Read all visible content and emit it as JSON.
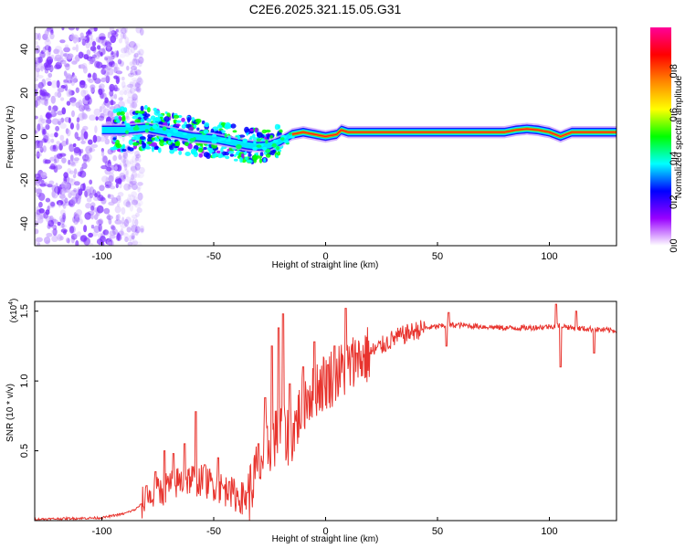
{
  "title": "C2E6.2025.321.15.05.G31",
  "chart_data": [
    {
      "type": "heatmap",
      "xlabel": "Height of straight line (km)",
      "ylabel": "Frequency (Hz)",
      "xlim": [
        -130,
        130
      ],
      "ylim": [
        -50,
        50
      ],
      "x_ticks": [
        -100,
        -50,
        0,
        50,
        100
      ],
      "x_tick_labels": [
        "-100",
        "-50",
        "0",
        "50",
        "100"
      ],
      "y_ticks": [
        -40,
        -20,
        0,
        20,
        40
      ],
      "y_tick_labels": [
        "-40",
        "-20",
        "0",
        "20",
        "40"
      ],
      "colorbar": {
        "label": "Normalized spectral amplitude",
        "range": [
          0,
          1
        ],
        "ticks": [
          0,
          0.2,
          0.4,
          0.6,
          0.8
        ],
        "tick_labels": [
          "0.0",
          "0.2",
          "0.4",
          "0.6",
          "0.8"
        ],
        "colors": [
          "#ffffff",
          "#9900ff",
          "#0000ff",
          "#00ffff",
          "#00ff00",
          "#ffff00",
          "#ff8800",
          "#ff0000",
          "#ff0099"
        ]
      },
      "ridge": {
        "x": [
          -100,
          -90,
          -80,
          -70,
          -60,
          -50,
          -45,
          -40,
          -35,
          -30,
          -25,
          -20,
          -15,
          -10,
          -5,
          0,
          5,
          7,
          10,
          20,
          40,
          60,
          80,
          85,
          90,
          95,
          100,
          105,
          110,
          120,
          130
        ],
        "y": [
          3,
          3,
          4,
          2,
          0,
          -1,
          -2,
          -3,
          -4,
          -4.5,
          -4,
          -2,
          1,
          2,
          1,
          0,
          1,
          3,
          2,
          2,
          2,
          2,
          2,
          3,
          3.5,
          3,
          2,
          0,
          2,
          2,
          2
        ]
      },
      "grid": false
    },
    {
      "type": "line",
      "xlabel": "Height of straight line (km)",
      "ylabel": "SNR (10 * v/v)",
      "scale_label_base": "(x10",
      "scale_label_exp": "4",
      "scale_label_close": ")",
      "xlim": [
        -130,
        130
      ],
      "ylim": [
        0,
        1.57
      ],
      "x_ticks": [
        -100,
        -50,
        0,
        50,
        100
      ],
      "x_tick_labels": [
        "-100",
        "-50",
        "0",
        "50",
        "100"
      ],
      "y_ticks": [
        0.5,
        1.0,
        1.5
      ],
      "y_tick_labels": [
        "0.5",
        "1.0",
        "1.5"
      ],
      "color": "#e8342e",
      "envelope": {
        "x": [
          -130,
          -100,
          -90,
          -85,
          -80,
          -75,
          -70,
          -65,
          -60,
          -55,
          -50,
          -45,
          -40,
          -35,
          -32,
          -28,
          -25,
          -22,
          -20,
          -18,
          -15,
          -12,
          -10,
          -5,
          0,
          5,
          10,
          15,
          20,
          25,
          30,
          35,
          40,
          45,
          50,
          55,
          60,
          70,
          80,
          90,
          100,
          105,
          110,
          120,
          130
        ],
        "y": [
          0.01,
          0.02,
          0.05,
          0.08,
          0.15,
          0.2,
          0.25,
          0.28,
          0.3,
          0.28,
          0.26,
          0.22,
          0.18,
          0.15,
          0.3,
          0.45,
          0.55,
          0.6,
          0.65,
          0.6,
          0.62,
          0.75,
          0.85,
          0.95,
          1.0,
          1.05,
          1.1,
          1.15,
          1.2,
          1.25,
          1.3,
          1.33,
          1.36,
          1.38,
          1.39,
          1.4,
          1.4,
          1.39,
          1.38,
          1.38,
          1.39,
          1.4,
          1.38,
          1.37,
          1.36
        ]
      },
      "spikes": [
        {
          "x": -80,
          "y": 0.25
        },
        {
          "x": -76,
          "y": 0.35
        },
        {
          "x": -72,
          "y": 0.5
        },
        {
          "x": -68,
          "y": 0.48
        },
        {
          "x": -63,
          "y": 0.55
        },
        {
          "x": -58,
          "y": 0.78
        },
        {
          "x": -54,
          "y": 0.4
        },
        {
          "x": -48,
          "y": 0.45
        },
        {
          "x": -43,
          "y": 0.28
        },
        {
          "x": -35,
          "y": 0.2
        },
        {
          "x": -30,
          "y": 0.55
        },
        {
          "x": -27,
          "y": 0.88
        },
        {
          "x": -24,
          "y": 1.25
        },
        {
          "x": -21,
          "y": 1.38
        },
        {
          "x": -19,
          "y": 1.48
        },
        {
          "x": -16,
          "y": 0.98
        },
        {
          "x": -10,
          "y": 1.1
        },
        {
          "x": -5,
          "y": 1.28
        },
        {
          "x": 4,
          "y": 1.25
        },
        {
          "x": 9,
          "y": 1.52
        },
        {
          "x": 14,
          "y": 1.2
        },
        {
          "x": 55,
          "y": 1.49
        },
        {
          "x": 54,
          "y": 1.25
        },
        {
          "x": 103,
          "y": 1.55
        },
        {
          "x": 105,
          "y": 1.1
        },
        {
          "x": 112,
          "y": 1.5
        },
        {
          "x": 120,
          "y": 1.2
        }
      ],
      "grid": false
    }
  ]
}
